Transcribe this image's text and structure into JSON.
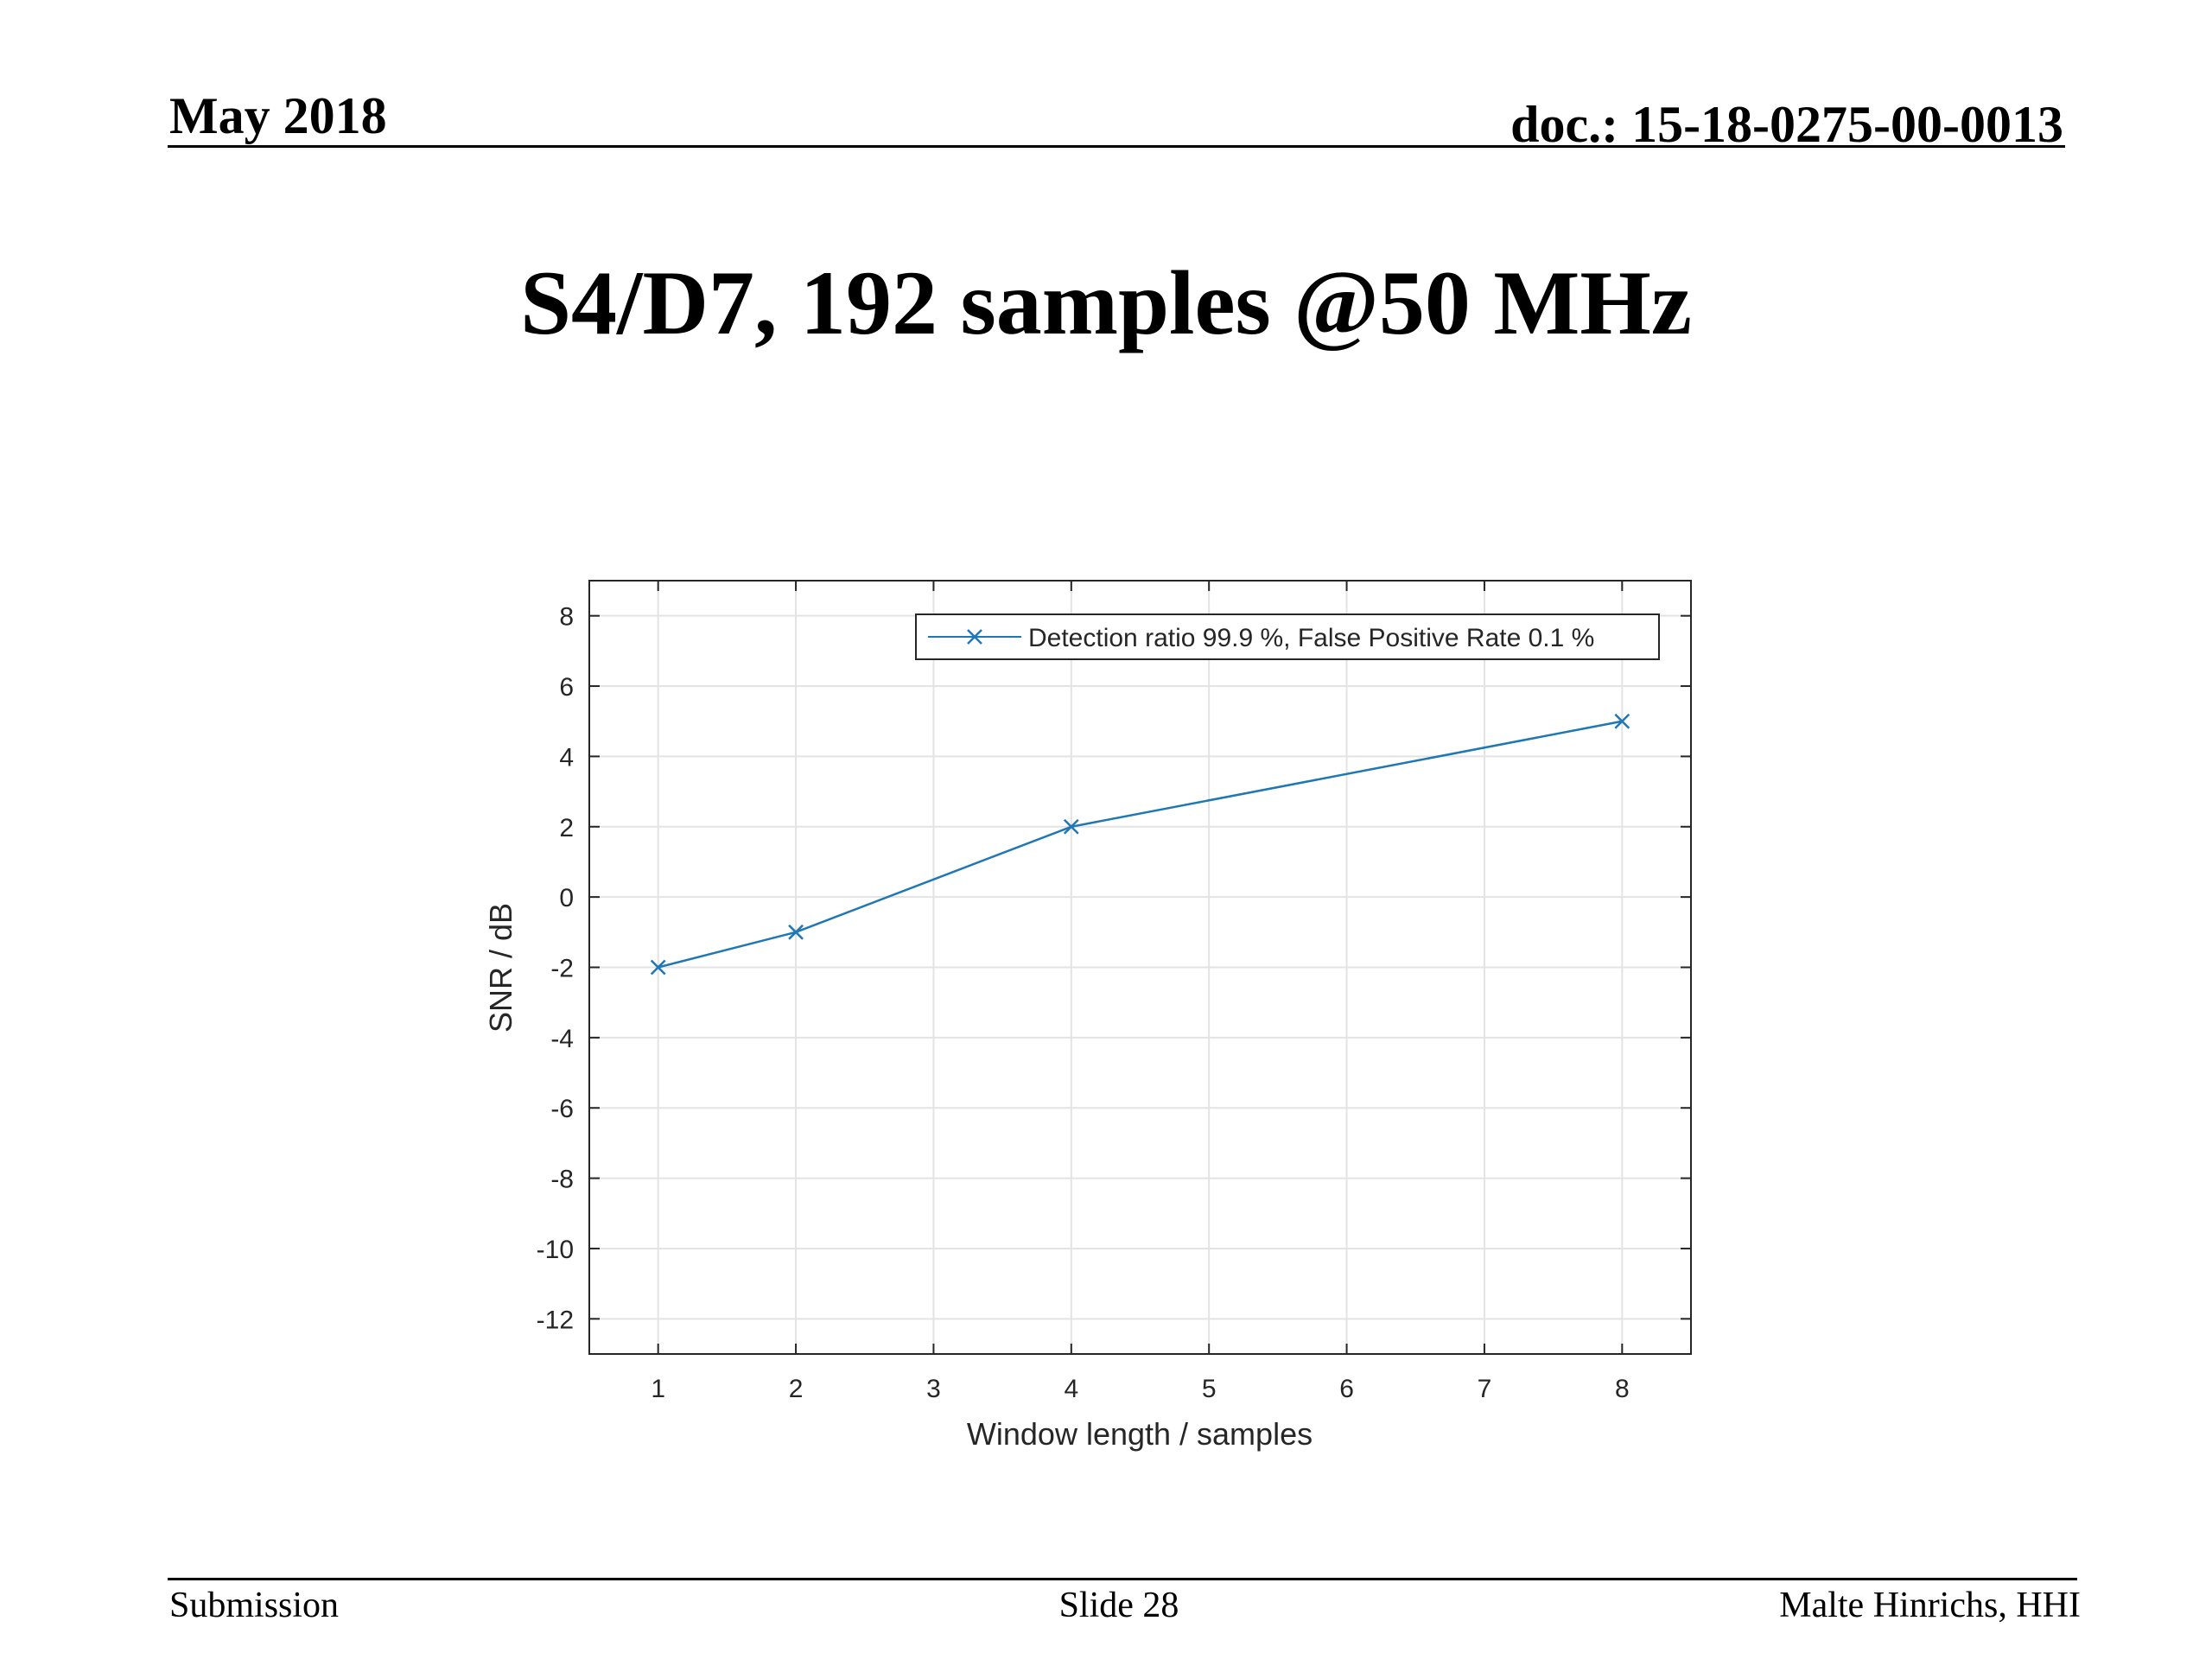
{
  "header": {
    "date": "May 2018",
    "doc": "doc.: 15-18-0275-00-0013"
  },
  "slide": {
    "title": "S4/D7, 192 samples @50 MHz"
  },
  "footer": {
    "left": "Submission",
    "center": "Slide 28",
    "right": "Malte Hinrichs, HHI"
  },
  "colors": {
    "series": "#1f77b4",
    "grid": "#e3e3e3",
    "axes": "#262626"
  },
  "chart_data": {
    "type": "line",
    "title": "",
    "xlabel": "Window length / samples",
    "ylabel": "SNR / dB",
    "x_categories": [
      "1",
      "2",
      "3",
      "4",
      "5",
      "6",
      "7",
      "8"
    ],
    "y_ticks": [
      8,
      6,
      4,
      2,
      0,
      -2,
      -4,
      -6,
      -8,
      -10,
      -12
    ],
    "ylim": [
      -13,
      9
    ],
    "grid": true,
    "legend_position": "top-right",
    "marker": "x",
    "series": [
      {
        "name": "Detection ratio 99.9 %, False Positive Rate 0.1 %",
        "points": [
          {
            "x": "1",
            "y": -2
          },
          {
            "x": "2",
            "y": -1
          },
          {
            "x": "4",
            "y": 2
          },
          {
            "x": "8",
            "y": 5
          }
        ]
      }
    ]
  }
}
